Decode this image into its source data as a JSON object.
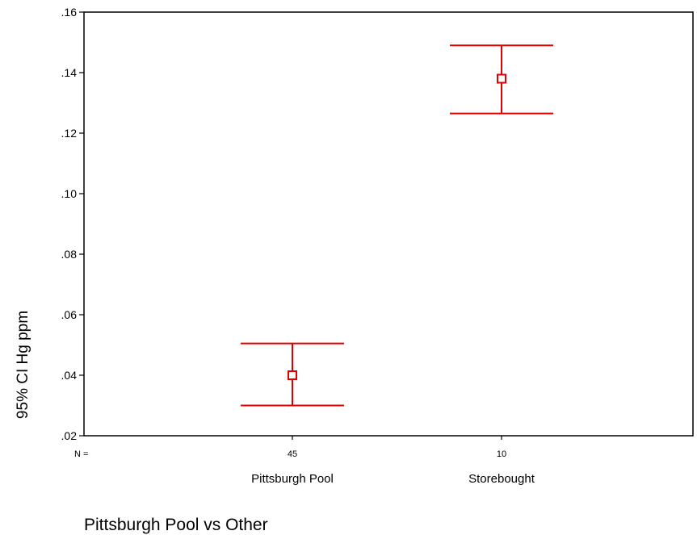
{
  "chart_data": {
    "type": "errorbar",
    "ylabel": "95% CI Hg ppm",
    "xlabel": "Pittsburgh Pool vs Other",
    "n_prefix": "N =",
    "ylim": [
      0.02,
      0.16
    ],
    "y_ticks": [
      {
        "value": 0.02,
        "label": ".02"
      },
      {
        "value": 0.04,
        "label": ".04"
      },
      {
        "value": 0.06,
        "label": ".06"
      },
      {
        "value": 0.08,
        "label": ".08"
      },
      {
        "value": 0.1,
        "label": ".10"
      },
      {
        "value": 0.12,
        "label": ".12"
      },
      {
        "value": 0.14,
        "label": ".14"
      },
      {
        "value": 0.16,
        "label": ".16"
      }
    ],
    "categories": [
      {
        "name": "Pittsburgh Pool",
        "n": "45",
        "mean": 0.04,
        "lower": 0.03,
        "upper": 0.0505
      },
      {
        "name": "Storebought",
        "n": "10",
        "mean": 0.138,
        "lower": 0.1265,
        "upper": 0.149
      }
    ],
    "color": "#e00000",
    "grid": false,
    "legend": "none"
  }
}
